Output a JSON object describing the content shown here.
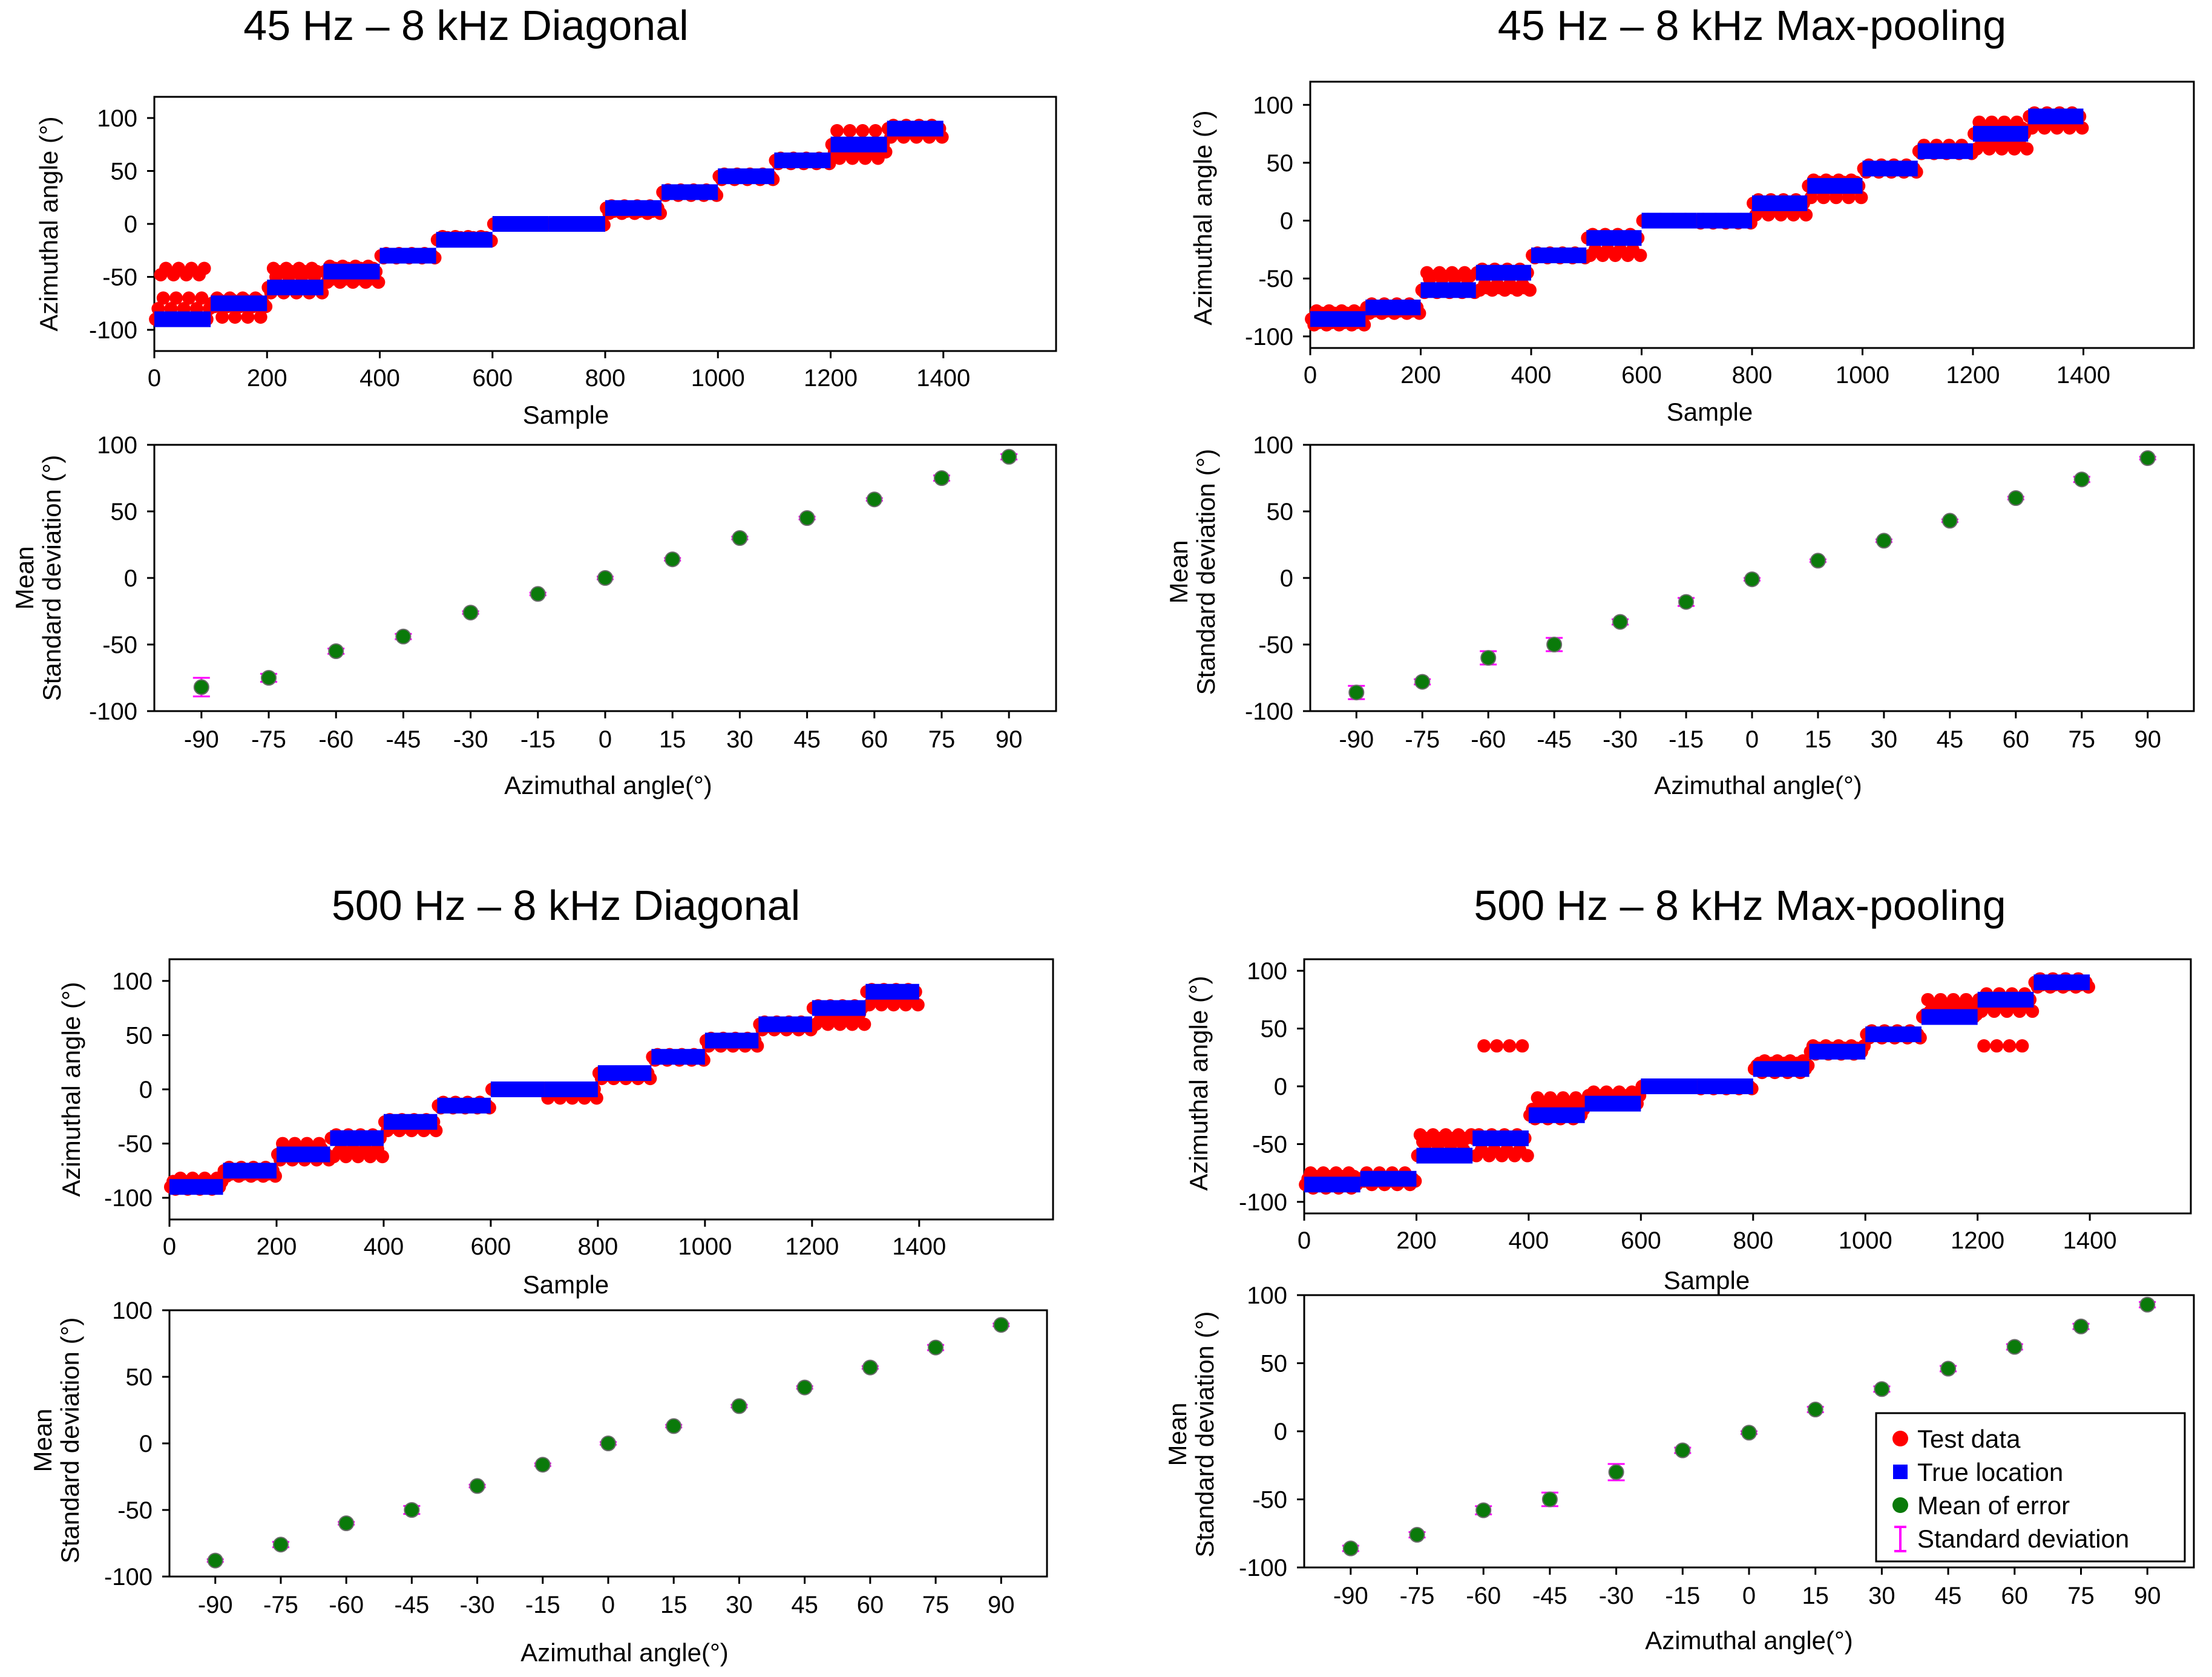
{
  "figure": {
    "legend": {
      "test_data": "Test data",
      "true_location": "True location",
      "mean_of_error": "Mean of error",
      "standard_deviation": "Standard deviation"
    },
    "colors": {
      "test_data": "#ff0000",
      "true_location": "#0000ff",
      "mean_of_error": "#0a7a0a",
      "standard_deviation": "#ff00ff"
    }
  },
  "chart_data": [
    {
      "id": "p1",
      "title": "45 Hz – 8 kHz Diagonal",
      "top": {
        "type": "scatter",
        "xlabel": "Sample",
        "ylabel": "Azimuthal angle (°)",
        "xlim": [
          0,
          1600
        ],
        "ylim": [
          -120,
          120
        ],
        "xticks": [
          0,
          200,
          400,
          600,
          800,
          1000,
          1200,
          1400
        ],
        "yticks": [
          -100,
          -50,
          0,
          50,
          100
        ],
        "true_location": {
          "segment_length": 100,
          "levels": [
            -90,
            -75,
            -60,
            -45,
            -30,
            -15,
            0,
            0,
            15,
            30,
            45,
            60,
            75,
            90
          ]
        },
        "test_data_spread": [
          [
            -90,
            -80,
            -48,
            -70,
            -42
          ],
          [
            -75,
            -78,
            -70,
            -72,
            -88
          ],
          [
            -60,
            -65,
            -42,
            -50,
            -45
          ],
          [
            -45,
            -55,
            -40,
            -52,
            -42
          ],
          [
            -30,
            -32,
            -28,
            -30,
            -29
          ],
          [
            -15,
            -16,
            -12,
            -14,
            -13
          ],
          [
            0,
            -1,
            1,
            0,
            0
          ],
          [
            0,
            -1,
            1,
            0,
            0
          ],
          [
            15,
            10,
            17,
            12,
            14
          ],
          [
            30,
            27,
            32,
            29,
            31
          ],
          [
            45,
            42,
            47,
            44,
            46
          ],
          [
            60,
            57,
            62,
            59,
            61
          ],
          [
            75,
            68,
            88,
            62,
            72
          ],
          [
            90,
            82,
            93,
            86,
            88
          ]
        ]
      },
      "bottom": {
        "type": "scatter",
        "xlabel": "Azimuthal angle(°)",
        "ylabel_line1": "Mean",
        "ylabel_line2": "Standard deviation (°)",
        "ylim": [
          -100,
          100
        ],
        "yticks": [
          -100,
          -50,
          0,
          50,
          100
        ],
        "categories": [
          "-90",
          "-75",
          "-60",
          "-45",
          "-30",
          "-15",
          "0",
          "15",
          "30",
          "45",
          "60",
          "75",
          "90"
        ],
        "means": [
          -82,
          -75,
          -55,
          -44,
          -26,
          -12,
          0,
          14,
          30,
          45,
          59,
          75,
          91
        ],
        "stds": [
          7,
          3,
          2,
          2,
          1,
          1,
          1,
          1,
          1,
          1,
          1,
          2,
          2
        ]
      }
    },
    {
      "id": "p2",
      "title": "45 Hz – 8 kHz Max-pooling",
      "top": {
        "type": "scatter",
        "xlabel": "Sample",
        "ylabel": "Azimuthal angle (°)",
        "xlim": [
          0,
          1600
        ],
        "ylim": [
          -110,
          120
        ],
        "xticks": [
          0,
          200,
          400,
          600,
          800,
          1000,
          1200,
          1400
        ],
        "yticks": [
          -100,
          -50,
          0,
          50,
          100
        ],
        "true_location": {
          "segment_length": 100,
          "levels": [
            -85,
            -75,
            -60,
            -45,
            -30,
            -15,
            0,
            0,
            15,
            30,
            45,
            60,
            75,
            90
          ]
        },
        "test_data_spread": [
          [
            -85,
            -90,
            -78,
            -88,
            -80
          ],
          [
            -75,
            -80,
            -72,
            -78,
            -76
          ],
          [
            -60,
            -62,
            -45,
            -50,
            -48
          ],
          [
            -45,
            -60,
            -42,
            -55,
            -58
          ],
          [
            -30,
            -32,
            -28,
            -30,
            -29
          ],
          [
            -15,
            -30,
            -12,
            -25,
            -14
          ],
          [
            0,
            -1,
            1,
            0,
            0
          ],
          [
            0,
            -2,
            1,
            0,
            -1
          ],
          [
            15,
            5,
            18,
            10,
            14
          ],
          [
            30,
            20,
            35,
            28,
            33
          ],
          [
            45,
            42,
            48,
            44,
            46
          ],
          [
            60,
            58,
            65,
            62,
            61
          ],
          [
            75,
            62,
            85,
            68,
            80
          ],
          [
            90,
            80,
            93,
            85,
            88
          ]
        ]
      },
      "bottom": {
        "type": "scatter",
        "xlabel": "Azimuthal angle(°)",
        "ylabel_line1": "Mean",
        "ylabel_line2": "Standard deviation (°)",
        "ylim": [
          -100,
          100
        ],
        "yticks": [
          -100,
          -50,
          0,
          50,
          100
        ],
        "categories": [
          "-90",
          "-75",
          "-60",
          "-45",
          "-30",
          "-15",
          "0",
          "15",
          "30",
          "45",
          "60",
          "75",
          "90"
        ],
        "means": [
          -86,
          -78,
          -60,
          -50,
          -33,
          -18,
          -1,
          13,
          28,
          43,
          60,
          74,
          90
        ],
        "stds": [
          5,
          2,
          5,
          5,
          2,
          3,
          1,
          1,
          1,
          1,
          1,
          2,
          1
        ]
      }
    },
    {
      "id": "p3",
      "title": "500 Hz – 8 kHz Diagonal",
      "top": {
        "type": "scatter",
        "xlabel": "Sample",
        "ylabel": "Azimuthal angle (°)",
        "xlim": [
          0,
          1650
        ],
        "ylim": [
          -120,
          120
        ],
        "xticks": [
          0,
          200,
          400,
          600,
          800,
          1000,
          1200,
          1400
        ],
        "yticks": [
          -100,
          -50,
          0,
          50,
          100
        ],
        "true_location": {
          "segment_length": 100,
          "levels": [
            -90,
            -75,
            -60,
            -45,
            -30,
            -15,
            0,
            0,
            15,
            30,
            45,
            60,
            75,
            90
          ]
        },
        "test_data_spread": [
          [
            -90,
            -85,
            -92,
            -88,
            -82
          ],
          [
            -75,
            -80,
            -72,
            -78,
            -76
          ],
          [
            -60,
            -65,
            -50,
            -55,
            -58
          ],
          [
            -45,
            -62,
            -42,
            -58,
            -55
          ],
          [
            -30,
            -38,
            -28,
            -35,
            -32
          ],
          [
            -15,
            -17,
            -12,
            -15,
            -14
          ],
          [
            0,
            -1,
            1,
            0,
            0
          ],
          [
            0,
            -8,
            1,
            -3,
            0
          ],
          [
            15,
            10,
            16,
            13,
            14
          ],
          [
            30,
            27,
            32,
            29,
            31
          ],
          [
            45,
            40,
            47,
            43,
            46
          ],
          [
            60,
            55,
            62,
            58,
            61
          ],
          [
            75,
            60,
            77,
            65,
            70
          ],
          [
            90,
            78,
            92,
            85,
            88
          ]
        ]
      },
      "bottom": {
        "type": "scatter",
        "xlabel": "Azimuthal angle(°)",
        "ylabel_line1": "Mean",
        "ylabel_line2": "Standard deviation (°)",
        "ylim": [
          -100,
          100
        ],
        "yticks": [
          -100,
          -50,
          0,
          50,
          100
        ],
        "categories": [
          "-90",
          "-75",
          "-60",
          "-45",
          "-30",
          "-15",
          "0",
          "15",
          "30",
          "45",
          "60",
          "75",
          "90"
        ],
        "means": [
          -88,
          -76,
          -60,
          -50,
          -32,
          -16,
          0,
          13,
          28,
          42,
          57,
          72,
          89
        ],
        "stds": [
          1,
          2,
          1,
          3,
          1,
          1,
          1,
          1,
          1,
          1,
          1,
          2,
          1
        ]
      }
    },
    {
      "id": "p4",
      "title": "500 Hz – 8 kHz Max-pooling",
      "top": {
        "type": "scatter",
        "xlabel": "Sample",
        "ylabel": "Azimuthal angle (°)",
        "xlim": [
          0,
          1580
        ],
        "ylim": [
          -110,
          110
        ],
        "xticks": [
          0,
          200,
          400,
          600,
          800,
          1000,
          1200,
          1400
        ],
        "yticks": [
          -100,
          -50,
          0,
          50,
          100
        ],
        "true_location": {
          "segment_length": 100,
          "levels": [
            -85,
            -80,
            -60,
            -45,
            -25,
            -15,
            0,
            0,
            15,
            30,
            45,
            60,
            75,
            90
          ]
        },
        "test_data_spread": [
          [
            -85,
            -80,
            -75,
            -88,
            -78
          ],
          [
            -80,
            -82,
            -75,
            -78,
            -85
          ],
          [
            -60,
            -42,
            -48,
            -55,
            -45
          ],
          [
            -45,
            -60,
            -42,
            -55,
            35
          ],
          [
            -25,
            -20,
            -28,
            -10,
            -15
          ],
          [
            -15,
            -8,
            -12,
            -5,
            -10
          ],
          [
            0,
            -1,
            1,
            0,
            0
          ],
          [
            0,
            -2,
            1,
            0,
            -1
          ],
          [
            15,
            18,
            20,
            12,
            22
          ],
          [
            30,
            35,
            28,
            33,
            30
          ],
          [
            45,
            42,
            48,
            44,
            46
          ],
          [
            60,
            62,
            75,
            65,
            70
          ],
          [
            75,
            65,
            35,
            80,
            70
          ],
          [
            90,
            86,
            93,
            88,
            90
          ]
        ]
      },
      "bottom": {
        "type": "scatter",
        "xlabel": "Azimuthal angle(°)",
        "ylabel_line1": "Mean",
        "ylabel_line2": "Standard deviation (°)",
        "ylim": [
          -100,
          100
        ],
        "yticks": [
          -100,
          -50,
          0,
          50,
          100
        ],
        "categories": [
          "-90",
          "-75",
          "-60",
          "-45",
          "-30",
          "-15",
          "0",
          "15",
          "30",
          "45",
          "60",
          "75",
          "90"
        ],
        "means": [
          -86,
          -76,
          -58,
          -50,
          -30,
          -14,
          -1,
          16,
          31,
          46,
          62,
          77,
          93
        ],
        "stds": [
          2,
          2,
          3,
          5,
          6,
          2,
          1,
          2,
          2,
          2,
          2,
          2,
          2
        ]
      }
    }
  ]
}
